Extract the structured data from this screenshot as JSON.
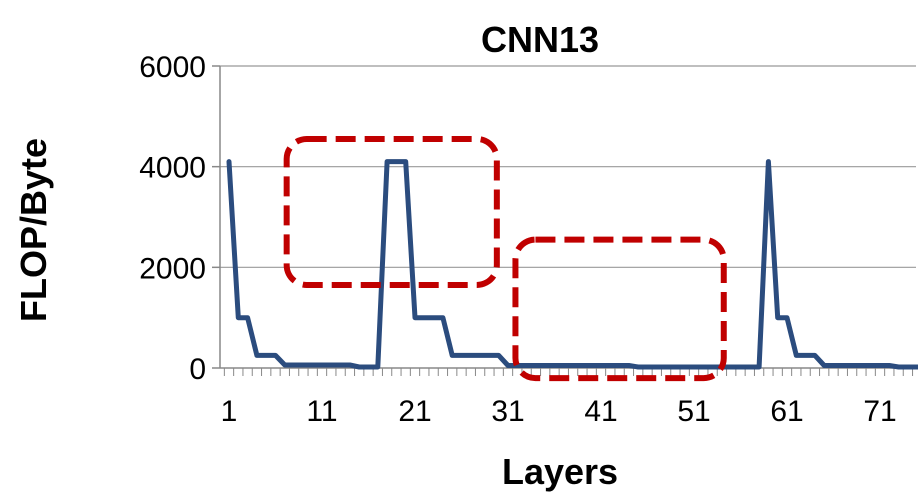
{
  "chart_data": {
    "type": "line",
    "title": "CNN13",
    "xlabel": "Layers",
    "ylabel": "FLOP/Byte",
    "ylim": [
      0,
      6000
    ],
    "xlim": [
      1,
      76
    ],
    "y_ticks": [
      0,
      2000,
      4000,
      6000
    ],
    "x_ticks": [
      1,
      11,
      21,
      31,
      41,
      51,
      61,
      71
    ],
    "grid": "horizontal",
    "legend": "none",
    "colors": {
      "line": "#2b4c7e",
      "highlight": "#c00000",
      "grid": "#999999",
      "axis": "#888888"
    },
    "series": [
      {
        "x": [
          1,
          2,
          3,
          4,
          5,
          6,
          7,
          8,
          9,
          10,
          11,
          12,
          13,
          14,
          15,
          16,
          17,
          18,
          19,
          20,
          21,
          22,
          23,
          24,
          25,
          26,
          27,
          28,
          29,
          30,
          31,
          32,
          33,
          34,
          35,
          36,
          37,
          38,
          39,
          40,
          41,
          42,
          43,
          44,
          45,
          46,
          47,
          48,
          49,
          50,
          51,
          52,
          53,
          54,
          55,
          56,
          57,
          58,
          59,
          60,
          61,
          62,
          63,
          64,
          65,
          66,
          67,
          68,
          69,
          70,
          71,
          72,
          73,
          74,
          75,
          76
        ],
        "values": [
          4100,
          1000,
          1000,
          250,
          250,
          250,
          60,
          60,
          60,
          60,
          60,
          60,
          60,
          60,
          20,
          20,
          20,
          4100,
          4100,
          4100,
          1000,
          1000,
          1000,
          1000,
          250,
          250,
          250,
          250,
          250,
          250,
          50,
          50,
          50,
          50,
          50,
          50,
          50,
          50,
          50,
          50,
          50,
          50,
          50,
          50,
          20,
          20,
          20,
          20,
          20,
          20,
          20,
          20,
          20,
          20,
          20,
          20,
          20,
          20,
          4100,
          1000,
          1000,
          250,
          250,
          250,
          50,
          50,
          50,
          50,
          50,
          50,
          50,
          50,
          20,
          20,
          20,
          20
        ]
      }
    ],
    "highlights": [
      {
        "x_range": [
          7.2,
          29.8
        ],
        "y_range": [
          1650,
          4550
        ]
      },
      {
        "x_range": [
          31.8,
          54.2
        ],
        "y_range": [
          -200,
          2550
        ]
      }
    ]
  }
}
